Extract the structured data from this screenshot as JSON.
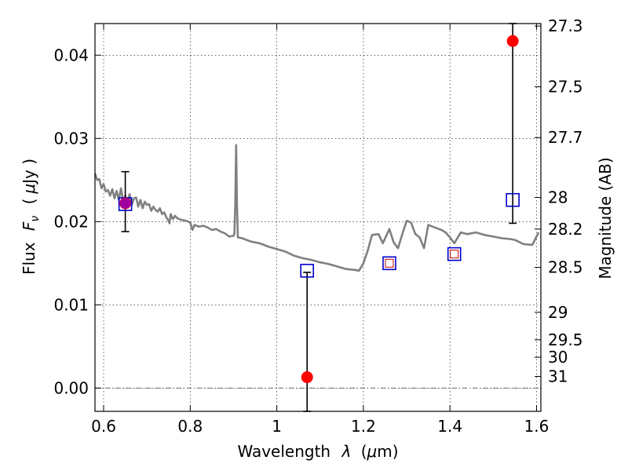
{
  "chart_data": {
    "type": "scatter",
    "title": "",
    "xlabel_main": "Wavelength",
    "xlabel_symbol": "λ",
    "xlabel_unit_open": "(",
    "xlabel_unit_mu": "μ",
    "xlabel_unit_rest": "m)",
    "ylabel_main": "Flux",
    "ylabel_symbol": "F",
    "ylabel_subscript": "ν",
    "ylabel_unit_open": "(",
    "ylabel_unit_mu": "μ",
    "ylabel_unit_rest": "Jy )",
    "y2label": "Magnitude (AB)",
    "xlim": [
      0.58,
      1.61
    ],
    "ylim": [
      -0.0028,
      0.0438
    ],
    "grid": true,
    "x_ticks": [
      {
        "value": 0.6,
        "label": "0.6"
      },
      {
        "value": 0.8,
        "label": "0.8"
      },
      {
        "value": 1.0,
        "label": "1"
      },
      {
        "value": 1.2,
        "label": "1.2"
      },
      {
        "value": 1.4,
        "label": "1.4"
      },
      {
        "value": 1.6,
        "label": "1.6"
      }
    ],
    "y_ticks": [
      {
        "value": 0.0,
        "label": "0.00"
      },
      {
        "value": 0.01,
        "label": "0.01"
      },
      {
        "value": 0.02,
        "label": "0.02"
      },
      {
        "value": 0.03,
        "label": "0.03"
      },
      {
        "value": 0.04,
        "label": "0.04"
      }
    ],
    "y2_ticks": [
      {
        "flux": 0.0435,
        "label": "27.3"
      },
      {
        "flux": 0.0362,
        "label": "27.5"
      },
      {
        "flux": 0.0301,
        "label": "27.7"
      },
      {
        "flux": 0.0229,
        "label": "28"
      },
      {
        "flux": 0.0191,
        "label": "28.2"
      },
      {
        "flux": 0.0145,
        "label": "28.5"
      },
      {
        "flux": 0.0091,
        "label": "29"
      },
      {
        "flux": 0.0058,
        "label": "29.5"
      },
      {
        "flux": 0.0037,
        "label": "30"
      },
      {
        "flux": 0.0014,
        "label": "31"
      }
    ],
    "model_spectrum": {
      "color": "#808080",
      "points": [
        [
          0.58,
          0.0258
        ],
        [
          0.585,
          0.025
        ],
        [
          0.59,
          0.0251
        ],
        [
          0.595,
          0.024
        ],
        [
          0.6,
          0.0245
        ],
        [
          0.605,
          0.0236
        ],
        [
          0.61,
          0.0238
        ],
        [
          0.615,
          0.0231
        ],
        [
          0.62,
          0.0239
        ],
        [
          0.625,
          0.0228
        ],
        [
          0.63,
          0.0237
        ],
        [
          0.635,
          0.0226
        ],
        [
          0.64,
          0.024
        ],
        [
          0.645,
          0.0225
        ],
        [
          0.65,
          0.0231
        ],
        [
          0.655,
          0.0222
        ],
        [
          0.66,
          0.0233
        ],
        [
          0.665,
          0.022
        ],
        [
          0.67,
          0.0228
        ],
        [
          0.675,
          0.0229
        ],
        [
          0.68,
          0.0218
        ],
        [
          0.685,
          0.0226
        ],
        [
          0.69,
          0.0216
        ],
        [
          0.695,
          0.0224
        ],
        [
          0.7,
          0.022
        ],
        [
          0.705,
          0.0221
        ],
        [
          0.71,
          0.0213
        ],
        [
          0.715,
          0.0218
        ],
        [
          0.72,
          0.0214
        ],
        [
          0.725,
          0.0212
        ],
        [
          0.73,
          0.0216
        ],
        [
          0.735,
          0.0209
        ],
        [
          0.74,
          0.0211
        ],
        [
          0.745,
          0.0205
        ],
        [
          0.75,
          0.0201
        ],
        [
          0.752,
          0.0198
        ],
        [
          0.755,
          0.0209
        ],
        [
          0.76,
          0.0203
        ],
        [
          0.765,
          0.0207
        ],
        [
          0.77,
          0.0204
        ],
        [
          0.78,
          0.0202
        ],
        [
          0.79,
          0.0201
        ],
        [
          0.8,
          0.0199
        ],
        [
          0.805,
          0.019
        ],
        [
          0.81,
          0.0196
        ],
        [
          0.82,
          0.0194
        ],
        [
          0.83,
          0.0195
        ],
        [
          0.84,
          0.0193
        ],
        [
          0.85,
          0.019
        ],
        [
          0.86,
          0.0191
        ],
        [
          0.87,
          0.0188
        ],
        [
          0.88,
          0.0186
        ],
        [
          0.89,
          0.0182
        ],
        [
          0.9,
          0.0183
        ],
        [
          0.902,
          0.0185
        ],
        [
          0.904,
          0.022
        ],
        [
          0.906,
          0.0292
        ],
        [
          0.908,
          0.022
        ],
        [
          0.91,
          0.0181
        ],
        [
          0.92,
          0.018
        ],
        [
          0.94,
          0.0176
        ],
        [
          0.96,
          0.0174
        ],
        [
          0.98,
          0.017
        ],
        [
          1.0,
          0.0167
        ],
        [
          1.02,
          0.0164
        ],
        [
          1.04,
          0.0159
        ],
        [
          1.06,
          0.0156
        ],
        [
          1.08,
          0.0154
        ],
        [
          1.1,
          0.0151
        ],
        [
          1.12,
          0.0149
        ],
        [
          1.14,
          0.0146
        ],
        [
          1.16,
          0.0143
        ],
        [
          1.18,
          0.0142
        ],
        [
          1.19,
          0.0141
        ],
        [
          1.2,
          0.015
        ],
        [
          1.21,
          0.0165
        ],
        [
          1.22,
          0.0184
        ],
        [
          1.235,
          0.0185
        ],
        [
          1.245,
          0.0174
        ],
        [
          1.26,
          0.0191
        ],
        [
          1.27,
          0.0175
        ],
        [
          1.28,
          0.0168
        ],
        [
          1.29,
          0.0185
        ],
        [
          1.3,
          0.0201
        ],
        [
          1.31,
          0.0199
        ],
        [
          1.32,
          0.0185
        ],
        [
          1.33,
          0.0181
        ],
        [
          1.34,
          0.0168
        ],
        [
          1.35,
          0.0196
        ],
        [
          1.36,
          0.0194
        ],
        [
          1.38,
          0.019
        ],
        [
          1.39,
          0.0187
        ],
        [
          1.4,
          0.0181
        ],
        [
          1.41,
          0.0174
        ],
        [
          1.425,
          0.0187
        ],
        [
          1.44,
          0.0185
        ],
        [
          1.46,
          0.0187
        ],
        [
          1.48,
          0.0184
        ],
        [
          1.5,
          0.0182
        ],
        [
          1.52,
          0.018
        ],
        [
          1.54,
          0.0179
        ],
        [
          1.55,
          0.0178
        ],
        [
          1.57,
          0.0173
        ],
        [
          1.59,
          0.0172
        ],
        [
          1.605,
          0.0187
        ]
      ]
    },
    "observed": {
      "color": "#ff0000",
      "points": [
        {
          "x": 0.65,
          "y": 0.0222,
          "yerr_low": 0.0188,
          "yerr_high": 0.026
        },
        {
          "x": 1.07,
          "y": 0.0013,
          "yerr_low": -0.0028,
          "yerr_high": 0.0139
        },
        {
          "x": 1.545,
          "y": 0.0417,
          "yerr_low": 0.0198,
          "yerr_high": 0.0438
        }
      ]
    },
    "model_photometry": {
      "color": "#0000cc",
      "points": [
        {
          "x": 0.65,
          "y": 0.0221
        },
        {
          "x": 1.07,
          "y": 0.0141
        },
        {
          "x": 1.26,
          "y": 0.015
        },
        {
          "x": 1.41,
          "y": 0.0161
        },
        {
          "x": 1.545,
          "y": 0.0226
        }
      ]
    },
    "inner_squares": {
      "color": "#cc0000",
      "points": [
        {
          "x": 1.26,
          "y": 0.015
        },
        {
          "x": 1.41,
          "y": 0.0161
        }
      ]
    },
    "highlight_marker": {
      "color": "#a000a0",
      "x": 0.65,
      "y": 0.0222
    }
  }
}
